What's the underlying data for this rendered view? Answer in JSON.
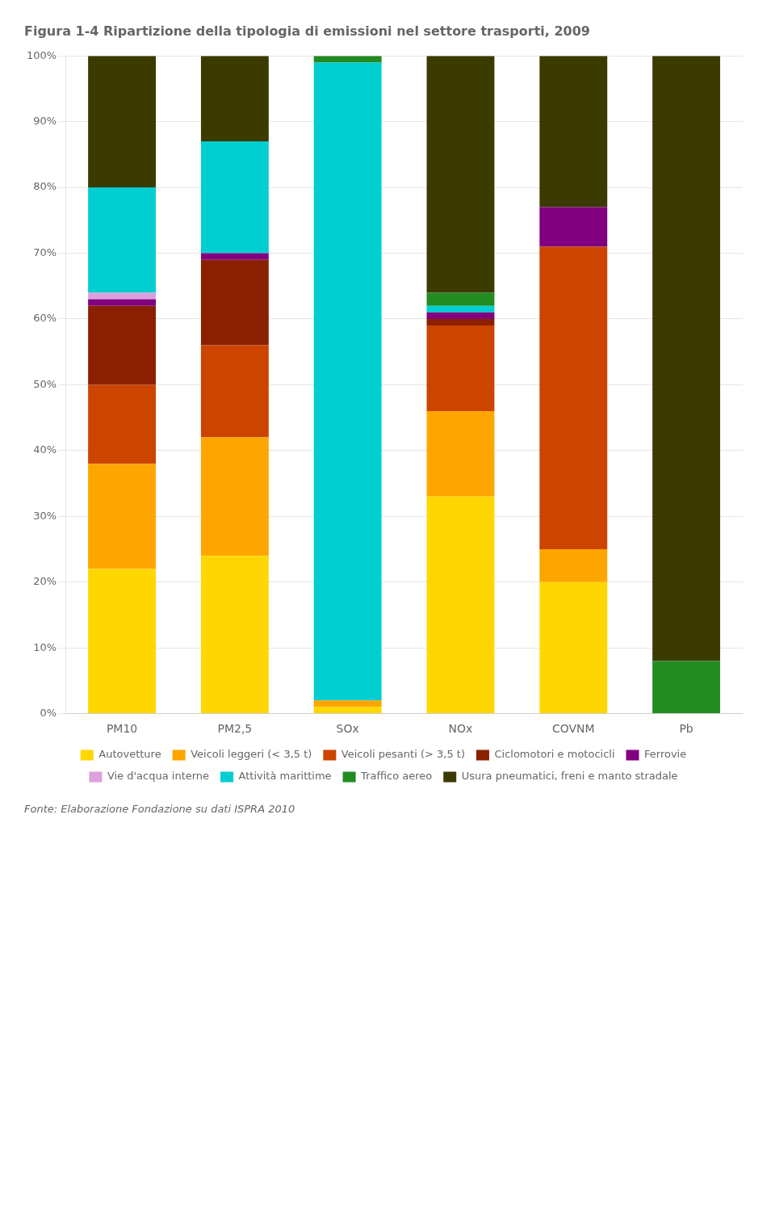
{
  "chart_data": {
    "type": "bar",
    "title": "Figura 1-4 Ripartizione della tipologia di emissioni nel settore trasporti, 2009",
    "annotations": [
      "Fonte: Elaborazione Fondazione su dati ISPRA 2010"
    ],
    "categories": [
      "PM10",
      "PM2,5",
      "SOx",
      "NOx",
      "COVNM",
      "Pb"
    ],
    "series": [
      {
        "name": "Autovetture",
        "color": "#FFD700",
        "values": [
          22,
          24,
          1.0101010101010102,
          33,
          20,
          0
        ]
      },
      {
        "name": "Veicoli leggeri (< 3,5 t)",
        "color": "#FFA500",
        "values": [
          16,
          18,
          1.0101010101010102,
          13,
          5,
          0
        ]
      },
      {
        "name": "Veicoli pesanti (> 3,5 t)",
        "color": "#CC4400",
        "values": [
          12,
          14,
          0,
          13,
          46,
          0
        ]
      },
      {
        "name": "Ciclomotori e motocicli",
        "color": "#8B2000",
        "values": [
          12,
          13,
          0,
          1,
          0,
          0
        ]
      },
      {
        "name": "Ferrovie",
        "color": "#800080",
        "values": [
          1,
          1,
          0,
          1,
          6,
          0
        ]
      },
      {
        "name": "Vie d'acqua interne",
        "color": "#DDA0DD",
        "values": [
          1,
          0,
          0,
          0,
          0,
          0
        ]
      },
      {
        "name": "Attività marittime",
        "color": "#00CED1",
        "values": [
          16,
          17,
          96.96969696969697,
          1,
          0,
          0
        ]
      },
      {
        "name": "Traffico aereo",
        "color": "#228B22",
        "values": [
          0,
          0,
          1.0101010101010102,
          2,
          0,
          8
        ]
      },
      {
        "name": "Usura pneumatici, freni e manto stradale",
        "color": "#3B3B00",
        "values": [
          20,
          13,
          0,
          36,
          23,
          92
        ]
      }
    ],
    "stacked": true,
    "ylim": [
      0,
      100
    ],
    "yticks": [
      {
        "value": 0,
        "label": "0%"
      },
      {
        "value": 10,
        "label": "10%"
      },
      {
        "value": 20,
        "label": "20%"
      },
      {
        "value": 30,
        "label": "30%"
      },
      {
        "value": 40,
        "label": "40%"
      },
      {
        "value": 50,
        "label": "50%"
      },
      {
        "value": 60,
        "label": "60%"
      },
      {
        "value": 70,
        "label": "70%"
      },
      {
        "value": 80,
        "label": "80%"
      },
      {
        "value": 90,
        "label": "90%"
      },
      {
        "value": 100,
        "label": "100%"
      }
    ],
    "grid": true,
    "legend": "bottom"
  }
}
